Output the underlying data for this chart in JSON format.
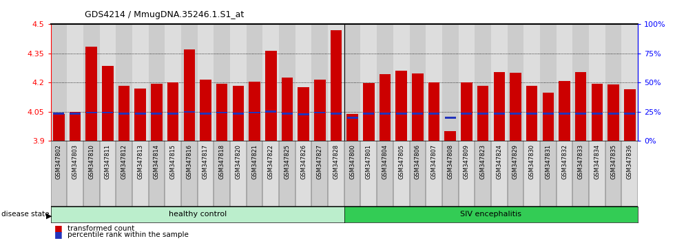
{
  "title": "GDS4214 / MmugDNA.35246.1.S1_at",
  "samples": [
    "GSM347802",
    "GSM347803",
    "GSM347810",
    "GSM347811",
    "GSM347812",
    "GSM347813",
    "GSM347814",
    "GSM347815",
    "GSM347816",
    "GSM347817",
    "GSM347818",
    "GSM347820",
    "GSM347821",
    "GSM347822",
    "GSM347825",
    "GSM347826",
    "GSM347827",
    "GSM347828",
    "GSM347800",
    "GSM347801",
    "GSM347804",
    "GSM347805",
    "GSM347806",
    "GSM347807",
    "GSM347808",
    "GSM347809",
    "GSM347823",
    "GSM347824",
    "GSM347829",
    "GSM347830",
    "GSM347831",
    "GSM347832",
    "GSM347833",
    "GSM347834",
    "GSM347835",
    "GSM347836"
  ],
  "bar_values": [
    4.04,
    4.05,
    4.385,
    4.285,
    4.185,
    4.17,
    4.195,
    4.2,
    4.37,
    4.215,
    4.195,
    4.185,
    4.205,
    4.365,
    4.225,
    4.175,
    4.215,
    4.47,
    4.04,
    4.198,
    4.245,
    4.26,
    4.248,
    4.2,
    3.95,
    4.2,
    4.185,
    4.255,
    4.25,
    4.185,
    4.15,
    4.21,
    4.255,
    4.195,
    4.19,
    4.165
  ],
  "blue_values": [
    4.04,
    4.04,
    4.046,
    4.046,
    4.04,
    4.04,
    4.04,
    4.04,
    4.05,
    4.04,
    4.046,
    4.04,
    4.046,
    4.051,
    4.04,
    4.038,
    4.046,
    4.04,
    4.02,
    4.04,
    4.04,
    4.04,
    4.04,
    4.04,
    4.02,
    4.04,
    4.04,
    4.04,
    4.04,
    4.04,
    4.04,
    4.04,
    4.04,
    4.04,
    4.04,
    4.04
  ],
  "n_healthy": 18,
  "ymin": 3.9,
  "ymax": 4.5,
  "yticks_left": [
    3.9,
    4.05,
    4.2,
    4.35,
    4.5
  ],
  "yticks_right_pct": [
    0,
    25,
    50,
    75,
    100
  ],
  "bar_color": "#cc0000",
  "blue_color": "#2233bb",
  "healthy_facecolor": "#bbeecc",
  "siv_facecolor": "#33cc55",
  "col_bg_even": "#cccccc",
  "col_bg_odd": "#dddddd",
  "label_transformed": "transformed count",
  "label_percentile": "percentile rank within the sample",
  "label_healthy": "healthy control",
  "label_siv": "SIV encephalitis",
  "label_disease": "disease state"
}
